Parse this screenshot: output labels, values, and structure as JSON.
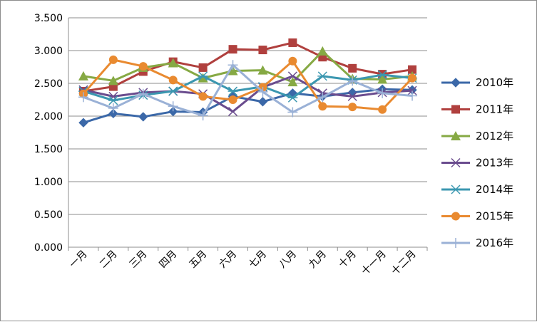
{
  "chart_data": {
    "type": "line",
    "categories": [
      "一月",
      "二月",
      "三月",
      "四月",
      "五月",
      "六月",
      "七月",
      "八月",
      "九月",
      "十月",
      "十一月",
      "十二月"
    ],
    "ylim": [
      0,
      3.5
    ],
    "yticks": [
      "0.000",
      "0.500",
      "1.000",
      "1.500",
      "2.000",
      "2.500",
      "3.000",
      "3.500"
    ],
    "grid": "horizontal",
    "legend_position": "right",
    "series": [
      {
        "name": "2010年",
        "color": "#3B68A8",
        "marker": "diamond",
        "values": [
          1.9,
          2.04,
          1.99,
          2.07,
          2.06,
          2.3,
          2.22,
          2.35,
          2.3,
          2.36,
          2.41,
          2.4
        ]
      },
      {
        "name": "2011年",
        "color": "#B0403E",
        "marker": "square",
        "values": [
          2.38,
          2.45,
          2.68,
          2.83,
          2.74,
          3.02,
          3.01,
          3.12,
          2.9,
          2.73,
          2.64,
          2.71
        ]
      },
      {
        "name": "2012年",
        "color": "#86A944",
        "marker": "triangle",
        "values": [
          2.61,
          2.54,
          2.74,
          2.81,
          2.58,
          2.69,
          2.7,
          2.52,
          2.99,
          2.57,
          2.56,
          2.61
        ]
      },
      {
        "name": "2013年",
        "color": "#6A4C8E",
        "marker": "x",
        "values": [
          2.4,
          2.3,
          2.36,
          2.38,
          2.34,
          2.07,
          2.44,
          2.61,
          2.35,
          2.3,
          2.36,
          2.39
        ]
      },
      {
        "name": "2014年",
        "color": "#3B97B0",
        "marker": "star",
        "values": [
          2.38,
          2.24,
          2.32,
          2.38,
          2.61,
          2.38,
          2.45,
          2.28,
          2.61,
          2.55,
          2.63,
          2.58
        ]
      },
      {
        "name": "2015年",
        "color": "#E98A30",
        "marker": "circle",
        "values": [
          2.34,
          2.86,
          2.76,
          2.55,
          2.3,
          2.25,
          2.44,
          2.84,
          2.15,
          2.14,
          2.1,
          2.58
        ]
      },
      {
        "name": "2016年",
        "color": "#9AB1D6",
        "marker": "plus",
        "values": [
          2.29,
          2.12,
          2.34,
          2.15,
          2.01,
          2.78,
          2.37,
          2.06,
          2.29,
          2.54,
          2.35,
          2.31
        ]
      }
    ]
  }
}
